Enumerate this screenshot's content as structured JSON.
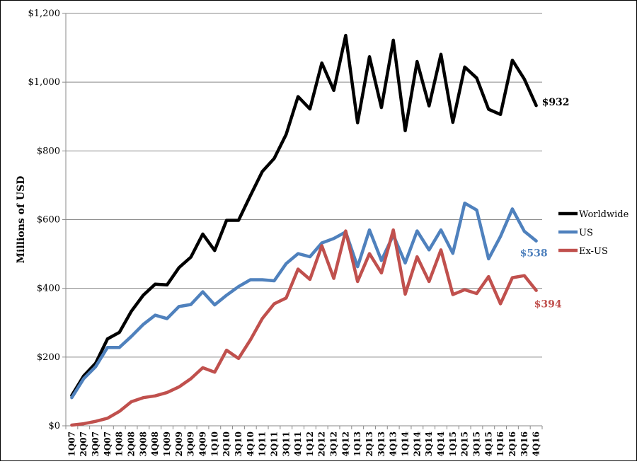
{
  "chart_data": {
    "type": "line",
    "title": "",
    "xlabel": "",
    "ylabel": "Millions of USD",
    "ylim": [
      0,
      1200
    ],
    "yticks": [
      0,
      200,
      400,
      600,
      800,
      1000,
      1200
    ],
    "ytick_labels": [
      "$0",
      "$200",
      "$400",
      "$600",
      "$800",
      "$1,000",
      "$1,200"
    ],
    "grid": true,
    "legend_position": "right",
    "categories": [
      "1Q07",
      "2Q07",
      "3Q07",
      "4Q07",
      "1Q08",
      "2Q08",
      "3Q08",
      "4Q08",
      "1Q09",
      "2Q09",
      "3Q09",
      "4Q09",
      "1Q10",
      "2Q10",
      "3Q10",
      "4Q10",
      "1Q11",
      "2Q11",
      "3Q11",
      "4Q11",
      "1Q12",
      "2Q12",
      "3Q12",
      "4Q12",
      "1Q13",
      "2Q13",
      "3Q13",
      "4Q13",
      "1Q14",
      "2Q14",
      "3Q14",
      "4Q14",
      "1Q15",
      "2Q15",
      "3Q15",
      "4Q15",
      "1Q16",
      "2Q16",
      "3Q16",
      "4Q16"
    ],
    "series": [
      {
        "name": "Worldwide",
        "color": "#000000",
        "end_label": "$932",
        "values": [
          88,
          145,
          182,
          253,
          272,
          333,
          380,
          412,
          410,
          460,
          491,
          558,
          510,
          598,
          598,
          670,
          740,
          778,
          848,
          958,
          922,
          1056,
          976,
          1136,
          882,
          1074,
          926,
          1122,
          859,
          1060,
          931,
          1081,
          883,
          1044,
          1012,
          921,
          906,
          1064,
          1009,
          932
        ]
      },
      {
        "name": "US",
        "color": "#4f81bd",
        "end_label": "$538",
        "values": [
          82,
          137,
          172,
          228,
          228,
          260,
          295,
          322,
          312,
          347,
          353,
          390,
          352,
          380,
          405,
          425,
          425,
          422,
          472,
          501,
          492,
          532,
          545,
          564,
          463,
          570,
          481,
          555,
          474,
          567,
          512,
          570,
          502,
          648,
          628,
          486,
          551,
          631,
          566,
          538
        ]
      },
      {
        "name": "Ex-US",
        "color": "#c0504d",
        "end_label": "$394",
        "values": [
          2,
          6,
          13,
          22,
          42,
          70,
          82,
          87,
          97,
          113,
          137,
          169,
          156,
          220,
          196,
          250,
          312,
          355,
          372,
          456,
          426,
          524,
          429,
          567,
          420,
          501,
          445,
          570,
          383,
          492,
          420,
          512,
          382,
          396,
          385,
          434,
          355,
          431,
          437,
          394
        ]
      }
    ]
  }
}
